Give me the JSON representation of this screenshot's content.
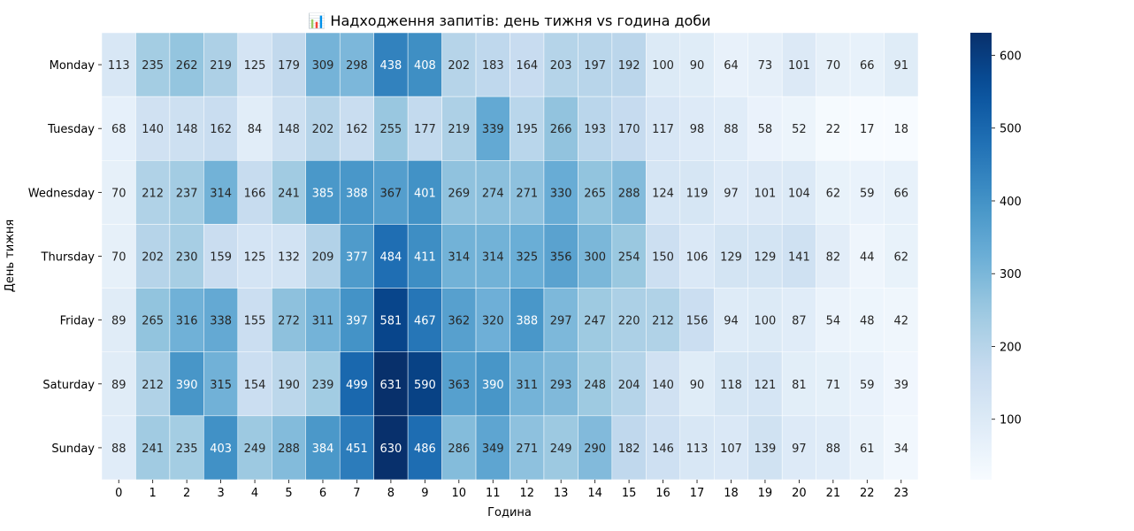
{
  "chart_data": {
    "type": "heatmap",
    "title": "📊 Надходження запитів: день тижня vs година доби",
    "xlabel": "Година",
    "ylabel": "День тижня",
    "x": [
      "0",
      "1",
      "2",
      "3",
      "4",
      "5",
      "6",
      "7",
      "8",
      "9",
      "10",
      "11",
      "12",
      "13",
      "14",
      "15",
      "16",
      "17",
      "18",
      "19",
      "20",
      "21",
      "22",
      "23"
    ],
    "y": [
      "Monday",
      "Tuesday",
      "Wednesday",
      "Thursday",
      "Friday",
      "Saturday",
      "Sunday"
    ],
    "values": [
      [
        113,
        235,
        262,
        219,
        125,
        179,
        309,
        298,
        438,
        408,
        202,
        183,
        164,
        203,
        197,
        192,
        100,
        90,
        64,
        73,
        101,
        70,
        66,
        91
      ],
      [
        68,
        140,
        148,
        162,
        84,
        148,
        202,
        162,
        255,
        177,
        219,
        339,
        195,
        266,
        193,
        170,
        117,
        98,
        88,
        58,
        52,
        22,
        17,
        18
      ],
      [
        70,
        212,
        237,
        314,
        166,
        241,
        385,
        388,
        367,
        401,
        269,
        274,
        271,
        330,
        265,
        288,
        124,
        119,
        97,
        101,
        104,
        62,
        59,
        66
      ],
      [
        70,
        202,
        230,
        159,
        125,
        132,
        209,
        377,
        484,
        411,
        314,
        314,
        325,
        356,
        300,
        254,
        150,
        106,
        129,
        129,
        141,
        82,
        44,
        62
      ],
      [
        89,
        265,
        316,
        338,
        155,
        272,
        311,
        397,
        581,
        467,
        362,
        320,
        388,
        297,
        247,
        220,
        212,
        156,
        94,
        100,
        87,
        54,
        48,
        42
      ],
      [
        89,
        212,
        390,
        315,
        154,
        190,
        239,
        499,
        631,
        590,
        363,
        390,
        311,
        293,
        248,
        204,
        140,
        90,
        118,
        121,
        81,
        71,
        59,
        39
      ],
      [
        88,
        241,
        235,
        403,
        249,
        288,
        384,
        451,
        630,
        486,
        286,
        349,
        271,
        249,
        290,
        182,
        146,
        113,
        107,
        139,
        97,
        88,
        61,
        34
      ]
    ],
    "colormap": "Blues",
    "vmin": 17,
    "vmax": 631,
    "colorbar_ticks": [
      "100",
      "200",
      "300",
      "400",
      "500",
      "600"
    ],
    "annotations": true,
    "grid": false
  }
}
